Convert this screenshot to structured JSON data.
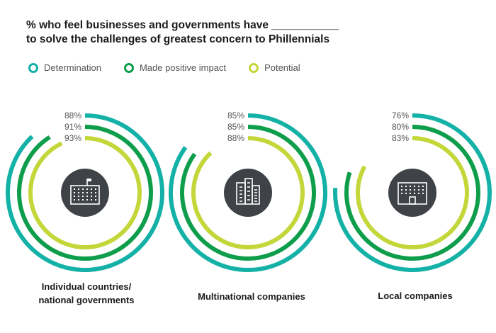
{
  "title": {
    "line1": "% who feel businesses and governments have ___________",
    "line2": "to solve  the challenges of greatest concern to Phillennials"
  },
  "colors": {
    "determination": "#14b1a6",
    "made_positive_impact": "#0e9e4b",
    "potential": "#c3d73a",
    "icon_bg": "#3f4247"
  },
  "legend": [
    {
      "label": "Determination",
      "color": "#14b1a6"
    },
    {
      "label": "Made positive impact",
      "color": "#0e9e4b"
    },
    {
      "label": "Potential",
      "color": "#c3d73a"
    }
  ],
  "chart_data": {
    "type": "radial-bar",
    "series_names": [
      "Determination",
      "Made positive impact",
      "Potential"
    ],
    "groups": [
      {
        "category": "Individual countries/ national governments",
        "label_lines": [
          "Individual countries/",
          "national governments"
        ],
        "icon": "government-building-icon",
        "values": [
          88,
          91,
          93
        ],
        "labels": [
          "88%",
          "91%",
          "93%"
        ]
      },
      {
        "category": "Multinational companies",
        "label_lines": [
          "Multinational companies"
        ],
        "icon": "skyscraper-icon",
        "values": [
          85,
          85,
          88
        ],
        "labels": [
          "85%",
          "85%",
          "88%"
        ]
      },
      {
        "category": "Local companies",
        "label_lines": [
          "Local companies"
        ],
        "icon": "office-building-icon",
        "values": [
          76,
          80,
          83
        ],
        "labels": [
          "76%",
          "80%",
          "83%"
        ]
      }
    ]
  }
}
